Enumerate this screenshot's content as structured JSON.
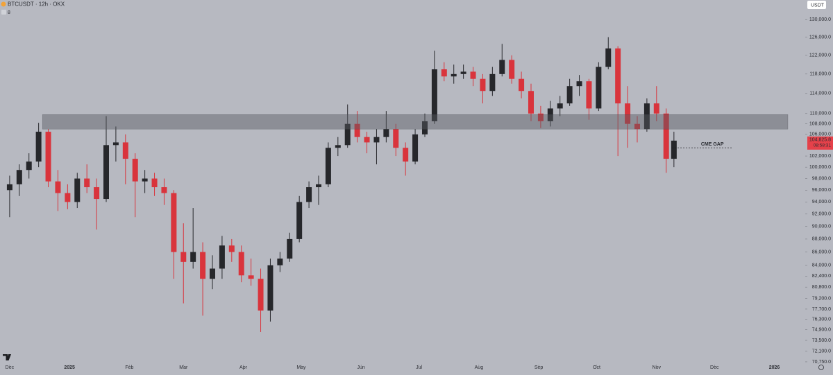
{
  "chart_data": {
    "type": "candlestick",
    "title": "BTCUSDT · 12h · OKX",
    "indicator": "8",
    "currency": "USDT",
    "x": [
      0,
      5,
      10,
      15,
      20,
      25,
      30,
      35,
      40,
      45,
      50,
      55,
      60,
      65,
      70,
      75,
      80,
      85,
      90,
      95,
      100,
      105,
      110,
      115,
      120,
      125,
      130,
      135,
      140,
      145,
      150,
      155,
      160,
      165,
      170,
      175,
      180,
      185,
      190,
      195,
      200,
      205,
      210,
      215,
      220,
      225,
      230,
      235,
      240,
      245,
      250,
      255,
      260,
      265,
      270,
      275,
      280,
      285,
      290,
      295,
      300,
      305,
      310,
      315,
      320,
      325,
      330,
      335,
      340,
      344
    ],
    "open": [
      96000,
      97000,
      99500,
      101000,
      106500,
      97500,
      95500,
      94000,
      98000,
      96500,
      94500,
      104000,
      104500,
      101500,
      97500,
      98000,
      96500,
      95500,
      86000,
      84500,
      86000,
      82000,
      83500,
      87000,
      86000,
      82500,
      82000,
      77500,
      84000,
      85000,
      88000,
      94000,
      96500,
      97000,
      103500,
      104000,
      108000,
      105500,
      104500,
      105500,
      107000,
      103500,
      101000,
      106000,
      108500,
      119000,
      117500,
      118000,
      118500,
      117000,
      114500,
      118000,
      121000,
      117000,
      114500,
      110000,
      108500,
      111000,
      112000,
      115500,
      116500,
      111000,
      119500,
      123500,
      112000,
      108000,
      107000,
      112000,
      110000,
      101500
    ],
    "high": [
      98500,
      100500,
      102500,
      108200,
      107000,
      99500,
      97000,
      99000,
      100500,
      98000,
      109500,
      107500,
      106000,
      102500,
      99500,
      99000,
      98000,
      96000,
      90500,
      93000,
      87500,
      85500,
      88500,
      88000,
      87000,
      85000,
      83500,
      85000,
      86000,
      89000,
      95000,
      97500,
      98500,
      104500,
      105500,
      111800,
      110500,
      106500,
      107000,
      110500,
      108000,
      104500,
      107000,
      110000,
      123000,
      120500,
      120000,
      120000,
      119500,
      118000,
      119500,
      124500,
      122000,
      118500,
      116000,
      111500,
      112500,
      113500,
      117000,
      117800,
      117000,
      120500,
      126000,
      124000,
      115500,
      109500,
      113000,
      115500,
      111000,
      106500
    ],
    "low": [
      91500,
      95000,
      98000,
      100000,
      96500,
      92500,
      92800,
      93000,
      95500,
      89500,
      94000,
      101000,
      97000,
      91500,
      95500,
      95000,
      93500,
      82000,
      78500,
      83500,
      76800,
      80500,
      82000,
      84500,
      81500,
      81000,
      74600,
      76000,
      83000,
      84500,
      87500,
      93000,
      93500,
      96500,
      102000,
      103500,
      104500,
      102500,
      100500,
      104500,
      102000,
      98500,
      100500,
      105500,
      108000,
      116500,
      116000,
      117000,
      115500,
      112000,
      113500,
      117500,
      116000,
      113000,
      108500,
      107200,
      107500,
      109500,
      111500,
      113500,
      108800,
      110500,
      119000,
      102000,
      103500,
      104500,
      106500,
      108500,
      99000,
      100000
    ],
    "close": [
      97000,
      99500,
      101000,
      106500,
      97500,
      95500,
      94000,
      98000,
      96500,
      94500,
      104000,
      104500,
      101500,
      97500,
      98000,
      96500,
      95500,
      86000,
      84500,
      86000,
      82000,
      83500,
      87000,
      86000,
      82500,
      82000,
      77500,
      84000,
      85000,
      88000,
      94000,
      96500,
      97000,
      103500,
      104000,
      108000,
      105500,
      104500,
      105500,
      107000,
      103500,
      101000,
      106000,
      108500,
      119000,
      117500,
      118000,
      118500,
      117000,
      114500,
      118000,
      121000,
      117000,
      114500,
      110000,
      108500,
      111000,
      112000,
      115500,
      116500,
      111000,
      119500,
      123500,
      112000,
      108000,
      107000,
      112000,
      110000,
      101500,
      104825.8
    ],
    "up_color": "#26272b",
    "down_color": "#d9343c",
    "log_scale": true,
    "ylim": [
      70400,
      134600
    ],
    "yticks": [
      {
        "value": 130000,
        "label": "130,000.0"
      },
      {
        "value": 126000,
        "label": "126,000.0"
      },
      {
        "value": 122000,
        "label": "122,000.0"
      },
      {
        "value": 118000,
        "label": "118,000.0"
      },
      {
        "value": 114000,
        "label": "114,000.0"
      },
      {
        "value": 110000,
        "label": "110,000.0"
      },
      {
        "value": 108000,
        "label": "108,000.0"
      },
      {
        "value": 106000,
        "label": "106,000.0"
      },
      {
        "value": 102000,
        "label": "102,000.0"
      },
      {
        "value": 100000,
        "label": "100,000.0"
      },
      {
        "value": 98000,
        "label": "98,000.0"
      },
      {
        "value": 96000,
        "label": "96,000.0"
      },
      {
        "value": 94000,
        "label": "94,000.0"
      },
      {
        "value": 92000,
        "label": "92,000.0"
      },
      {
        "value": 90000,
        "label": "90,000.0"
      },
      {
        "value": 88000,
        "label": "88,000.0"
      },
      {
        "value": 86000,
        "label": "86,000.0"
      },
      {
        "value": 84000,
        "label": "84,000.0"
      },
      {
        "value": 82400,
        "label": "82,400.0"
      },
      {
        "value": 80800,
        "label": "80,800.0"
      },
      {
        "value": 79200,
        "label": "79,200.0"
      },
      {
        "value": 77700,
        "label": "77,700.0"
      },
      {
        "value": 76300,
        "label": "76,300.0"
      },
      {
        "value": 74900,
        "label": "74,900.0"
      },
      {
        "value": 73500,
        "label": "73,500.0"
      },
      {
        "value": 72100,
        "label": "72,100.0"
      },
      {
        "value": 70750,
        "label": "70,750.0"
      }
    ],
    "xlim": [
      -5,
      412
    ],
    "xticks": [
      {
        "value": 0,
        "label": "Dec"
      },
      {
        "value": 31,
        "label": "2025"
      },
      {
        "value": 62,
        "label": "Feb"
      },
      {
        "value": 90,
        "label": "Mar"
      },
      {
        "value": 121,
        "label": "Apr"
      },
      {
        "value": 151,
        "label": "May"
      },
      {
        "value": 182,
        "label": "Jun"
      },
      {
        "value": 212,
        "label": "Jul"
      },
      {
        "value": 243,
        "label": "Aug"
      },
      {
        "value": 274,
        "label": "Sep"
      },
      {
        "value": 304,
        "label": "Oct"
      },
      {
        "value": 335,
        "label": "Nov"
      },
      {
        "value": 365,
        "label": "Dec"
      },
      {
        "value": 396,
        "label": "2026"
      }
    ],
    "zone": {
      "top": 109800,
      "bottom": 107000,
      "x": [
        17,
        403
      ]
    },
    "annotations": [
      {
        "text": "CME GAP",
        "value": 103500,
        "x": [
          343,
          374
        ]
      }
    ],
    "last_price": {
      "value": 104825.8,
      "label": "104,825.8"
    },
    "countdown": "08:58:31"
  }
}
